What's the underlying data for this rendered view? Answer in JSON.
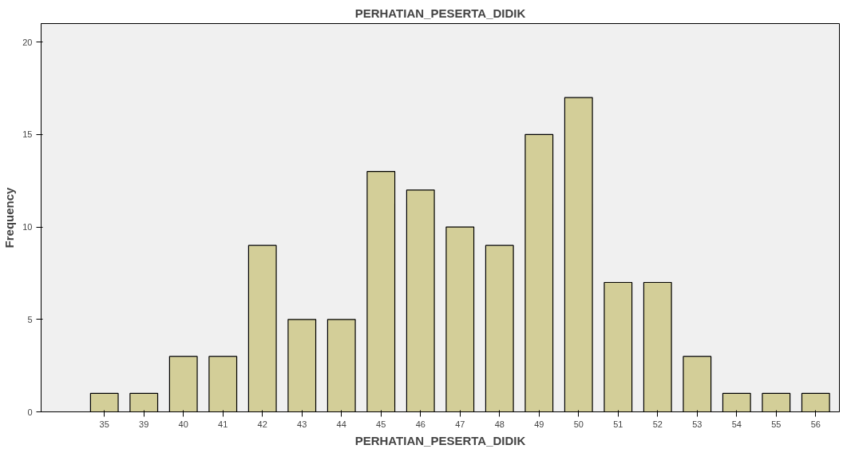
{
  "chart_data": {
    "type": "bar",
    "title": "PERHATIAN_PESERTA_DIDIK",
    "xlabel": "PERHATIAN_PESERTA_DIDIK",
    "ylabel": "Frequency",
    "categories": [
      "35",
      "39",
      "40",
      "41",
      "42",
      "43",
      "44",
      "45",
      "46",
      "47",
      "48",
      "49",
      "50",
      "51",
      "52",
      "53",
      "54",
      "55",
      "56"
    ],
    "values": [
      1,
      1,
      3,
      3,
      9,
      5,
      5,
      13,
      12,
      10,
      9,
      15,
      17,
      7,
      7,
      3,
      1,
      1,
      1
    ],
    "color": "#d3ce98",
    "ylim": [
      0,
      21
    ],
    "yticks": [
      0,
      5,
      10,
      15,
      20
    ],
    "grid": false
  }
}
